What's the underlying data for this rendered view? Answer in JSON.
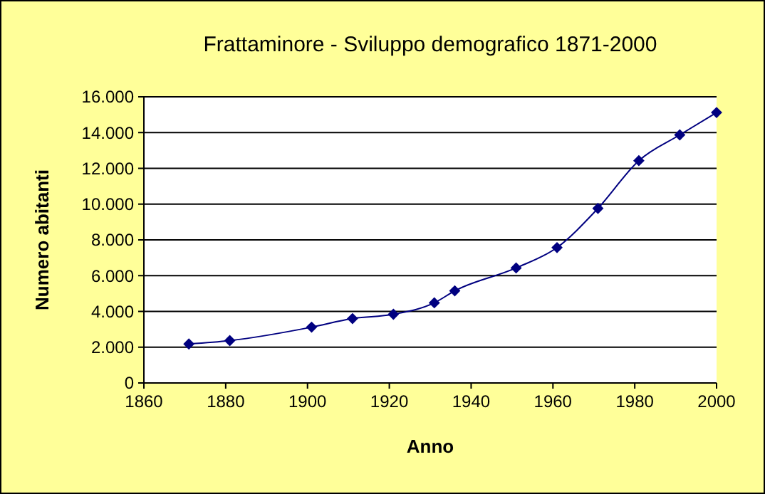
{
  "chart_data": {
    "type": "line",
    "title": "Frattaminore - Sviluppo demografico 1871-2000",
    "xlabel": "Anno",
    "ylabel": "Numero abitanti",
    "x": [
      1871,
      1881,
      1901,
      1911,
      1921,
      1931,
      1936,
      1951,
      1961,
      1971,
      1981,
      1991,
      2000
    ],
    "series": [
      {
        "color": "#000080",
        "values": [
          2180,
          2370,
          3120,
          3600,
          3840,
          4480,
          5150,
          6430,
          7570,
          9760,
          12430,
          13870,
          15120
        ]
      }
    ],
    "xlim": [
      1860,
      2000
    ],
    "xticks": [
      1860,
      1880,
      1900,
      1920,
      1940,
      1960,
      1980,
      2000
    ],
    "ylim": [
      0,
      16000
    ],
    "yticks": [
      {
        "value": 0,
        "label": "0"
      },
      {
        "value": 2000,
        "label": "2.000"
      },
      {
        "value": 4000,
        "label": "4.000"
      },
      {
        "value": 6000,
        "label": "6.000"
      },
      {
        "value": 8000,
        "label": "8.000"
      },
      {
        "value": 10000,
        "label": "10.000"
      },
      {
        "value": 12000,
        "label": "12.000"
      },
      {
        "value": 14000,
        "label": "14.000"
      },
      {
        "value": 16000,
        "label": "16.000"
      }
    ],
    "grid": "y",
    "marker": "diamond",
    "line_style": "solid"
  }
}
